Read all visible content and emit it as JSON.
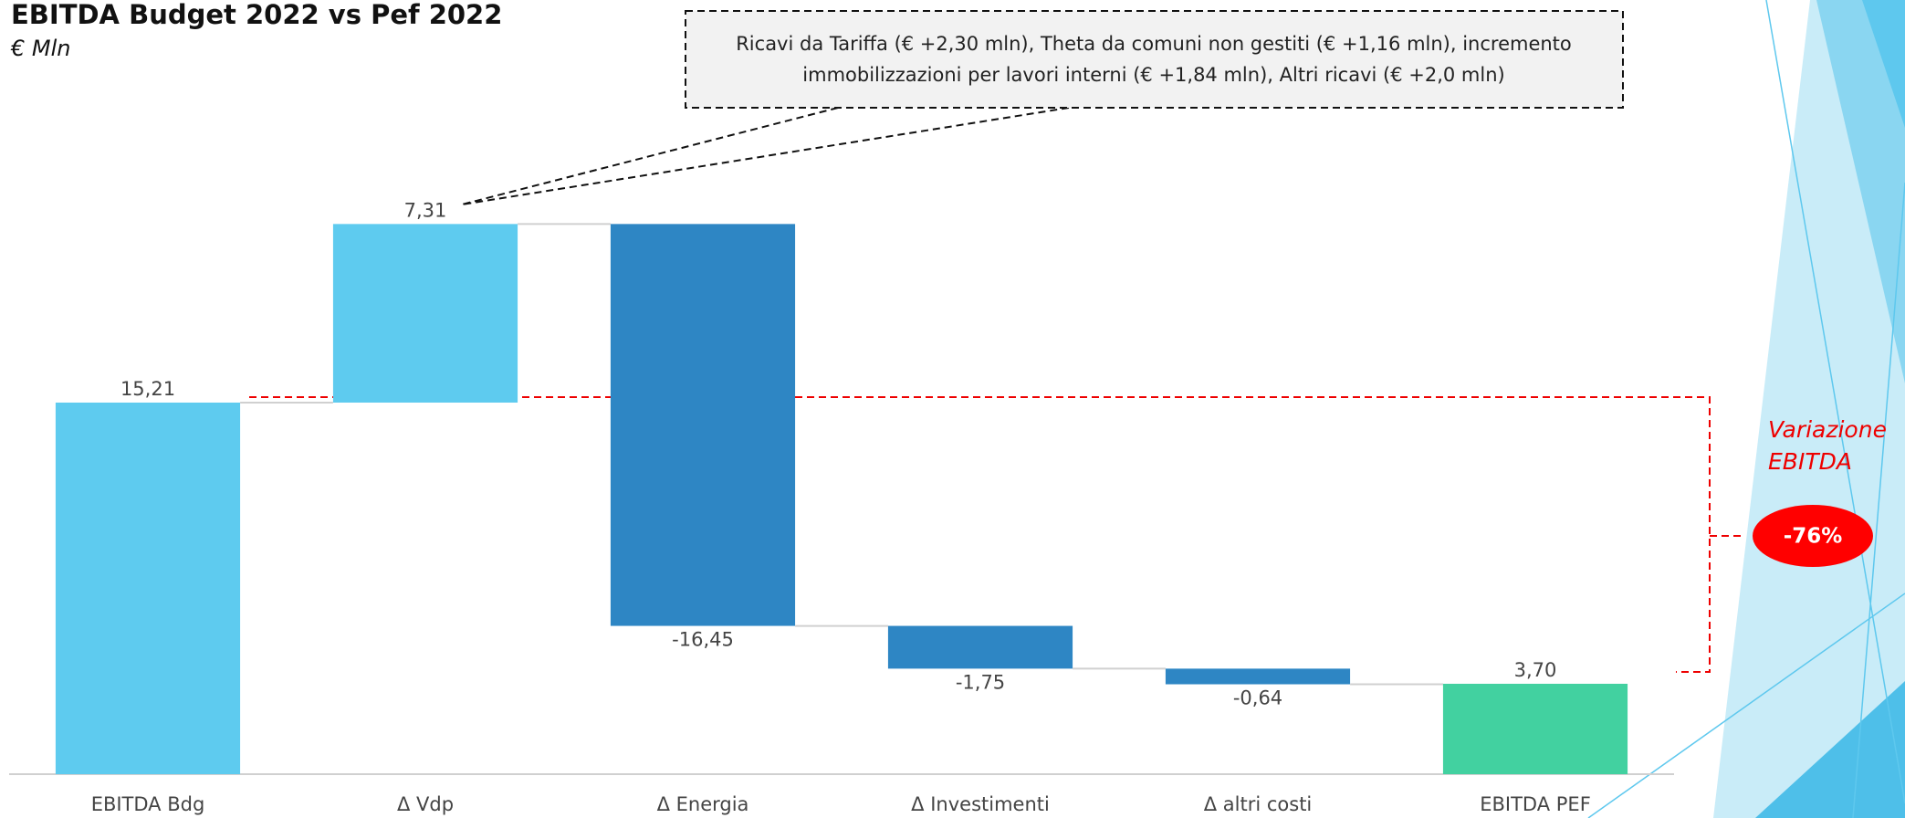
{
  "chart_data": {
    "type": "waterfall",
    "title": "EBITDA Budget 2022 vs Pef 2022",
    "subtitle": "€ Mln",
    "categories": [
      "EBITDA Bdg",
      "Δ Vdp",
      "Δ Energia",
      "Δ Investimenti",
      "Δ altri costi",
      "EBITDA PEF"
    ],
    "values": [
      15.21,
      7.31,
      -16.45,
      -1.75,
      -0.64,
      3.7
    ],
    "value_labels": [
      "15,21",
      "7,31",
      "-16,45",
      "-1,75",
      "-0,64",
      "3,70"
    ],
    "measure": [
      "absolute",
      "relative",
      "relative",
      "relative",
      "relative",
      "absolute"
    ],
    "colors": [
      "#5ecbef",
      "#5ecbef",
      "#2e86c4",
      "#2e86c4",
      "#2e86c4",
      "#42d1a0"
    ],
    "ylim": [
      0,
      25
    ],
    "callout": [
      "Ricavi da Tariffa (€ +2,30 mln), Theta da comuni non gestiti (€ +1,16 mln), incremento",
      "immobilizzazioni per lavori interni (€ +1,84 mln), Altri ricavi (€ +2,0 mln)"
    ],
    "variation_label": [
      "Variazione",
      "EBITDA"
    ],
    "variation_value": "-76%"
  }
}
